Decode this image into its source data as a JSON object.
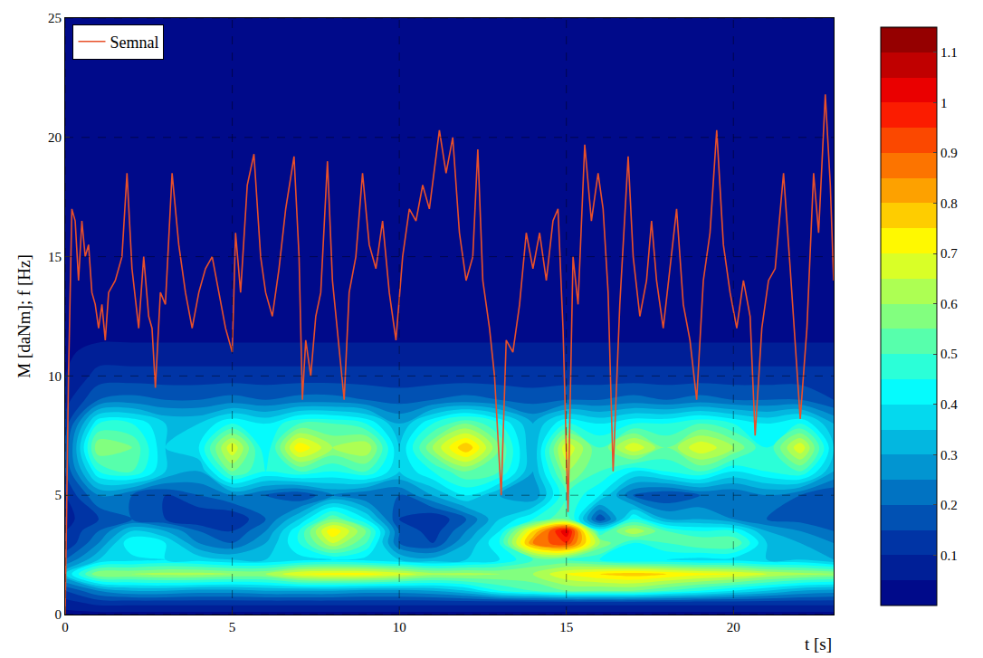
{
  "chart_data": {
    "type": "heatmap",
    "x_label": "t [s]",
    "y_label": "M [daNm]; f [Hz]",
    "xlim": [
      0,
      23
    ],
    "xticks": [
      0,
      5,
      10,
      15,
      20
    ],
    "ylim": [
      0,
      25
    ],
    "yticks": [
      0,
      5,
      10,
      15,
      20,
      25
    ],
    "grid": true,
    "legend": "upper left",
    "heatmap": {
      "x": [
        0,
        1,
        2,
        3,
        4,
        5,
        6,
        7,
        8,
        9,
        10,
        11,
        12,
        13,
        14,
        15,
        16,
        17,
        18,
        19,
        20,
        21,
        22,
        23
      ],
      "y": [
        0,
        0.5,
        1,
        1.7,
        2.3,
        3,
        3.5,
        4,
        5,
        6,
        7,
        8,
        9,
        10,
        11,
        12,
        25
      ],
      "z": [
        [
          0.03,
          0.03,
          0.03,
          0.03,
          0.03,
          0.03,
          0.03,
          0.03,
          0.03,
          0.03,
          0.03,
          0.03,
          0.03,
          0.03,
          0.03,
          0.03,
          0.03,
          0.03,
          0.03,
          0.03,
          0.03,
          0.03,
          0.03,
          0.03
        ],
        [
          0.08,
          0.12,
          0.12,
          0.12,
          0.12,
          0.12,
          0.12,
          0.12,
          0.12,
          0.12,
          0.12,
          0.12,
          0.12,
          0.12,
          0.12,
          0.12,
          0.12,
          0.12,
          0.12,
          0.12,
          0.12,
          0.12,
          0.12,
          0.12
        ],
        [
          0.15,
          0.25,
          0.3,
          0.3,
          0.28,
          0.28,
          0.3,
          0.3,
          0.3,
          0.28,
          0.28,
          0.3,
          0.35,
          0.45,
          0.5,
          0.55,
          0.55,
          0.55,
          0.5,
          0.45,
          0.4,
          0.35,
          0.3,
          0.28
        ],
        [
          0.35,
          0.6,
          0.6,
          0.62,
          0.62,
          0.6,
          0.6,
          0.7,
          0.72,
          0.72,
          0.68,
          0.62,
          0.62,
          0.6,
          0.6,
          0.7,
          0.75,
          0.78,
          0.75,
          0.72,
          0.7,
          0.65,
          0.62,
          0.6
        ],
        [
          0.2,
          0.35,
          0.38,
          0.4,
          0.38,
          0.35,
          0.35,
          0.38,
          0.4,
          0.38,
          0.35,
          0.32,
          0.35,
          0.4,
          0.5,
          0.5,
          0.45,
          0.4,
          0.4,
          0.38,
          0.38,
          0.35,
          0.35,
          0.3
        ],
        [
          0.1,
          0.25,
          0.45,
          0.4,
          0.25,
          0.2,
          0.3,
          0.45,
          0.65,
          0.5,
          0.2,
          0.15,
          0.3,
          0.45,
          0.85,
          0.95,
          0.6,
          0.45,
          0.5,
          0.55,
          0.55,
          0.35,
          0.3,
          0.25
        ],
        [
          0.1,
          0.2,
          0.35,
          0.3,
          0.2,
          0.15,
          0.25,
          0.45,
          0.75,
          0.55,
          0.2,
          0.12,
          0.25,
          0.4,
          0.75,
          1.05,
          0.45,
          0.65,
          0.5,
          0.45,
          0.45,
          0.3,
          0.25,
          0.2
        ],
        [
          0.08,
          0.15,
          0.2,
          0.15,
          0.1,
          0.1,
          0.2,
          0.35,
          0.55,
          0.4,
          0.15,
          0.1,
          0.2,
          0.35,
          0.45,
          0.55,
          0.15,
          0.45,
          0.3,
          0.3,
          0.25,
          0.2,
          0.18,
          0.15
        ],
        [
          0.1,
          0.25,
          0.2,
          0.15,
          0.2,
          0.25,
          0.2,
          0.15,
          0.25,
          0.2,
          0.2,
          0.3,
          0.4,
          0.3,
          0.25,
          0.5,
          0.4,
          0.2,
          0.15,
          0.2,
          0.2,
          0.25,
          0.2,
          0.15
        ],
        [
          0.15,
          0.45,
          0.5,
          0.35,
          0.3,
          0.55,
          0.45,
          0.5,
          0.45,
          0.5,
          0.35,
          0.45,
          0.55,
          0.5,
          0.3,
          0.6,
          0.5,
          0.4,
          0.45,
          0.5,
          0.4,
          0.45,
          0.5,
          0.3
        ],
        [
          0.15,
          0.6,
          0.55,
          0.35,
          0.4,
          0.7,
          0.4,
          0.75,
          0.6,
          0.65,
          0.35,
          0.6,
          0.8,
          0.55,
          0.3,
          0.7,
          0.5,
          0.7,
          0.55,
          0.7,
          0.6,
          0.45,
          0.7,
          0.35
        ],
        [
          0.12,
          0.45,
          0.45,
          0.35,
          0.35,
          0.45,
          0.4,
          0.5,
          0.5,
          0.45,
          0.3,
          0.45,
          0.55,
          0.45,
          0.3,
          0.45,
          0.4,
          0.45,
          0.45,
          0.5,
          0.45,
          0.4,
          0.45,
          0.3
        ],
        [
          0.08,
          0.2,
          0.22,
          0.2,
          0.2,
          0.22,
          0.2,
          0.22,
          0.22,
          0.2,
          0.18,
          0.2,
          0.22,
          0.2,
          0.18,
          0.2,
          0.2,
          0.22,
          0.2,
          0.22,
          0.2,
          0.2,
          0.2,
          0.15
        ],
        [
          0.05,
          0.12,
          0.12,
          0.12,
          0.12,
          0.12,
          0.12,
          0.12,
          0.12,
          0.12,
          0.12,
          0.12,
          0.12,
          0.12,
          0.12,
          0.12,
          0.12,
          0.12,
          0.12,
          0.12,
          0.12,
          0.12,
          0.12,
          0.12
        ],
        [
          0.04,
          0.07,
          0.07,
          0.07,
          0.07,
          0.07,
          0.07,
          0.07,
          0.07,
          0.07,
          0.07,
          0.07,
          0.07,
          0.07,
          0.07,
          0.07,
          0.07,
          0.07,
          0.07,
          0.07,
          0.07,
          0.07,
          0.07,
          0.07
        ],
        [
          0.02,
          0.02,
          0.02,
          0.02,
          0.02,
          0.02,
          0.02,
          0.02,
          0.02,
          0.02,
          0.02,
          0.02,
          0.02,
          0.02,
          0.02,
          0.02,
          0.02,
          0.02,
          0.02,
          0.02,
          0.02,
          0.02,
          0.02,
          0.02
        ],
        [
          0,
          0,
          0,
          0,
          0,
          0,
          0,
          0,
          0,
          0,
          0,
          0,
          0,
          0,
          0,
          0,
          0,
          0,
          0,
          0,
          0,
          0,
          0,
          0
        ]
      ],
      "zlim": [
        0,
        1.15
      ],
      "zticks": [
        0.1,
        0.2,
        0.3,
        0.4,
        0.5,
        0.6,
        0.7,
        0.8,
        0.9,
        1,
        1.1
      ]
    },
    "series": [
      {
        "name": "Semnal",
        "type": "line",
        "color": "#e8502a",
        "x": [
          0,
          0.1,
          0.2,
          0.3,
          0.4,
          0.5,
          0.6,
          0.7,
          0.8,
          0.9,
          1.0,
          1.1,
          1.2,
          1.3,
          1.5,
          1.7,
          1.85,
          2.0,
          2.2,
          2.35,
          2.5,
          2.6,
          2.7,
          2.85,
          3.0,
          3.2,
          3.4,
          3.6,
          3.8,
          4.0,
          4.2,
          4.4,
          4.6,
          4.8,
          5.0,
          5.1,
          5.25,
          5.45,
          5.65,
          5.85,
          6.0,
          6.2,
          6.4,
          6.6,
          6.85,
          7.0,
          7.1,
          7.2,
          7.35,
          7.5,
          7.65,
          7.85,
          8.0,
          8.2,
          8.35,
          8.5,
          8.7,
          8.9,
          9.1,
          9.3,
          9.5,
          9.7,
          9.9,
          10.1,
          10.3,
          10.5,
          10.7,
          10.9,
          11.2,
          11.4,
          11.6,
          11.8,
          12.0,
          12.2,
          12.35,
          12.5,
          12.7,
          12.85,
          13.05,
          13.2,
          13.4,
          13.6,
          13.8,
          14.0,
          14.2,
          14.4,
          14.6,
          14.75,
          14.9,
          15.05,
          15.2,
          15.35,
          15.55,
          15.75,
          15.95,
          16.1,
          16.25,
          16.4,
          16.6,
          16.85,
          17.0,
          17.2,
          17.4,
          17.55,
          17.7,
          17.9,
          18.1,
          18.3,
          18.5,
          18.7,
          18.9,
          19.1,
          19.3,
          19.5,
          19.7,
          19.9,
          20.1,
          20.3,
          20.5,
          20.65,
          20.85,
          21.05,
          21.25,
          21.5,
          21.7,
          21.9,
          22.0,
          22.2,
          22.4,
          22.55,
          22.75,
          22.9,
          23.0
        ],
        "values": [
          0,
          10,
          17,
          16.5,
          14,
          16.5,
          15,
          15.5,
          13.5,
          13,
          12,
          13,
          11.5,
          13.5,
          14,
          15,
          18.5,
          14.5,
          12,
          15,
          12.5,
          12,
          9.5,
          13.5,
          13,
          18.5,
          15.5,
          13.5,
          12,
          13.5,
          14.5,
          15,
          13.5,
          12,
          11,
          16,
          13.5,
          18,
          19.3,
          15,
          13.5,
          12.5,
          14.5,
          17,
          19.2,
          15,
          9,
          11.5,
          10,
          12.5,
          13.5,
          19,
          14,
          11,
          9,
          13.5,
          15,
          18.5,
          15.5,
          14.5,
          16.5,
          13.5,
          11.5,
          15,
          17,
          16.5,
          18,
          17,
          20.3,
          18.5,
          20,
          16,
          14,
          15,
          19.5,
          14,
          12,
          10,
          5,
          11.5,
          11,
          13,
          16,
          14.5,
          16,
          14,
          16.5,
          17,
          12,
          4.3,
          15,
          13,
          19.7,
          16.5,
          18.5,
          17,
          13.5,
          6,
          13,
          19.2,
          15,
          12.5,
          14,
          16.5,
          14,
          12,
          14.5,
          17,
          13,
          11.5,
          9,
          14,
          16,
          20.3,
          15.5,
          13.5,
          12,
          14,
          12.5,
          7.5,
          12,
          14,
          14.5,
          18.5,
          14.5,
          10,
          8.2,
          12,
          18.5,
          16,
          21.8,
          18,
          14
        ]
      }
    ]
  }
}
